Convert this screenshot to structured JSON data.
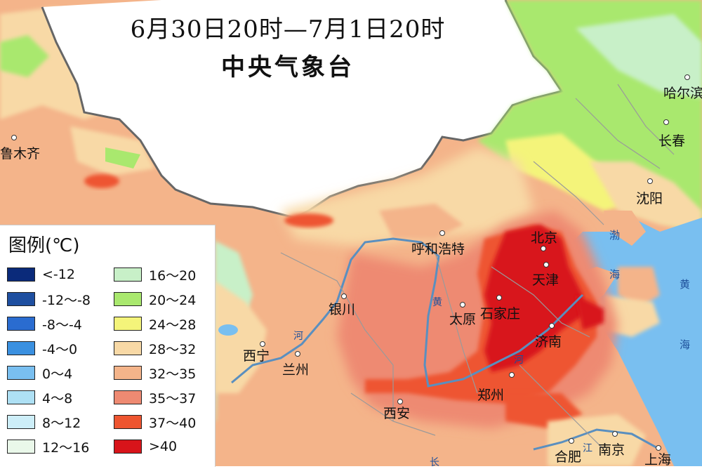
{
  "title": "6月30日20时—7月1日20时",
  "organization": "中央气象台",
  "legend": {
    "title": "图例(℃)",
    "items": [
      {
        "label": "<-12",
        "color": "#0a2a7a"
      },
      {
        "label": "-12～-8",
        "color": "#1e4fa0"
      },
      {
        "label": "-8～-4",
        "color": "#2a6cd0"
      },
      {
        "label": "-4～0",
        "color": "#3a90e0"
      },
      {
        "label": "0～4",
        "color": "#79bff0"
      },
      {
        "label": "4～8",
        "color": "#aee0f4"
      },
      {
        "label": "8～12",
        "color": "#cdeef8"
      },
      {
        "label": "12～16",
        "color": "#eaf8ea"
      },
      {
        "label": "16～20",
        "color": "#c8f0c8"
      },
      {
        "label": "20～24",
        "color": "#a9e86e"
      },
      {
        "label": "24～28",
        "color": "#f4f47a"
      },
      {
        "label": "28～32",
        "color": "#f8d9a6"
      },
      {
        "label": "32～35",
        "color": "#f4b48a"
      },
      {
        "label": "35～37",
        "color": "#ee8a72"
      },
      {
        "label": "37～40",
        "color": "#ee5530"
      },
      {
        "label": ">40",
        "color": "#d8141a"
      }
    ]
  },
  "cities": [
    {
      "name": "鲁木齐"
    },
    {
      "name": "哈尔滨"
    },
    {
      "name": "长春"
    },
    {
      "name": "沈阳"
    },
    {
      "name": "呼和浩特"
    },
    {
      "name": "北京"
    },
    {
      "name": "天津"
    },
    {
      "name": "银川"
    },
    {
      "name": "太原"
    },
    {
      "name": "石家庄"
    },
    {
      "name": "济南"
    },
    {
      "name": "西宁"
    },
    {
      "name": "兰州"
    },
    {
      "name": "郑州"
    },
    {
      "name": "西安"
    },
    {
      "name": "合肥"
    },
    {
      "name": "南京"
    },
    {
      "name": "上海"
    }
  ],
  "seas": [
    {
      "name": "渤"
    },
    {
      "name": "海"
    },
    {
      "name": "黄"
    },
    {
      "name": "海"
    }
  ],
  "rivers": [
    {
      "name": "黄"
    },
    {
      "name": "河"
    },
    {
      "name": "河"
    },
    {
      "name": "江"
    },
    {
      "name": "长"
    }
  ]
}
